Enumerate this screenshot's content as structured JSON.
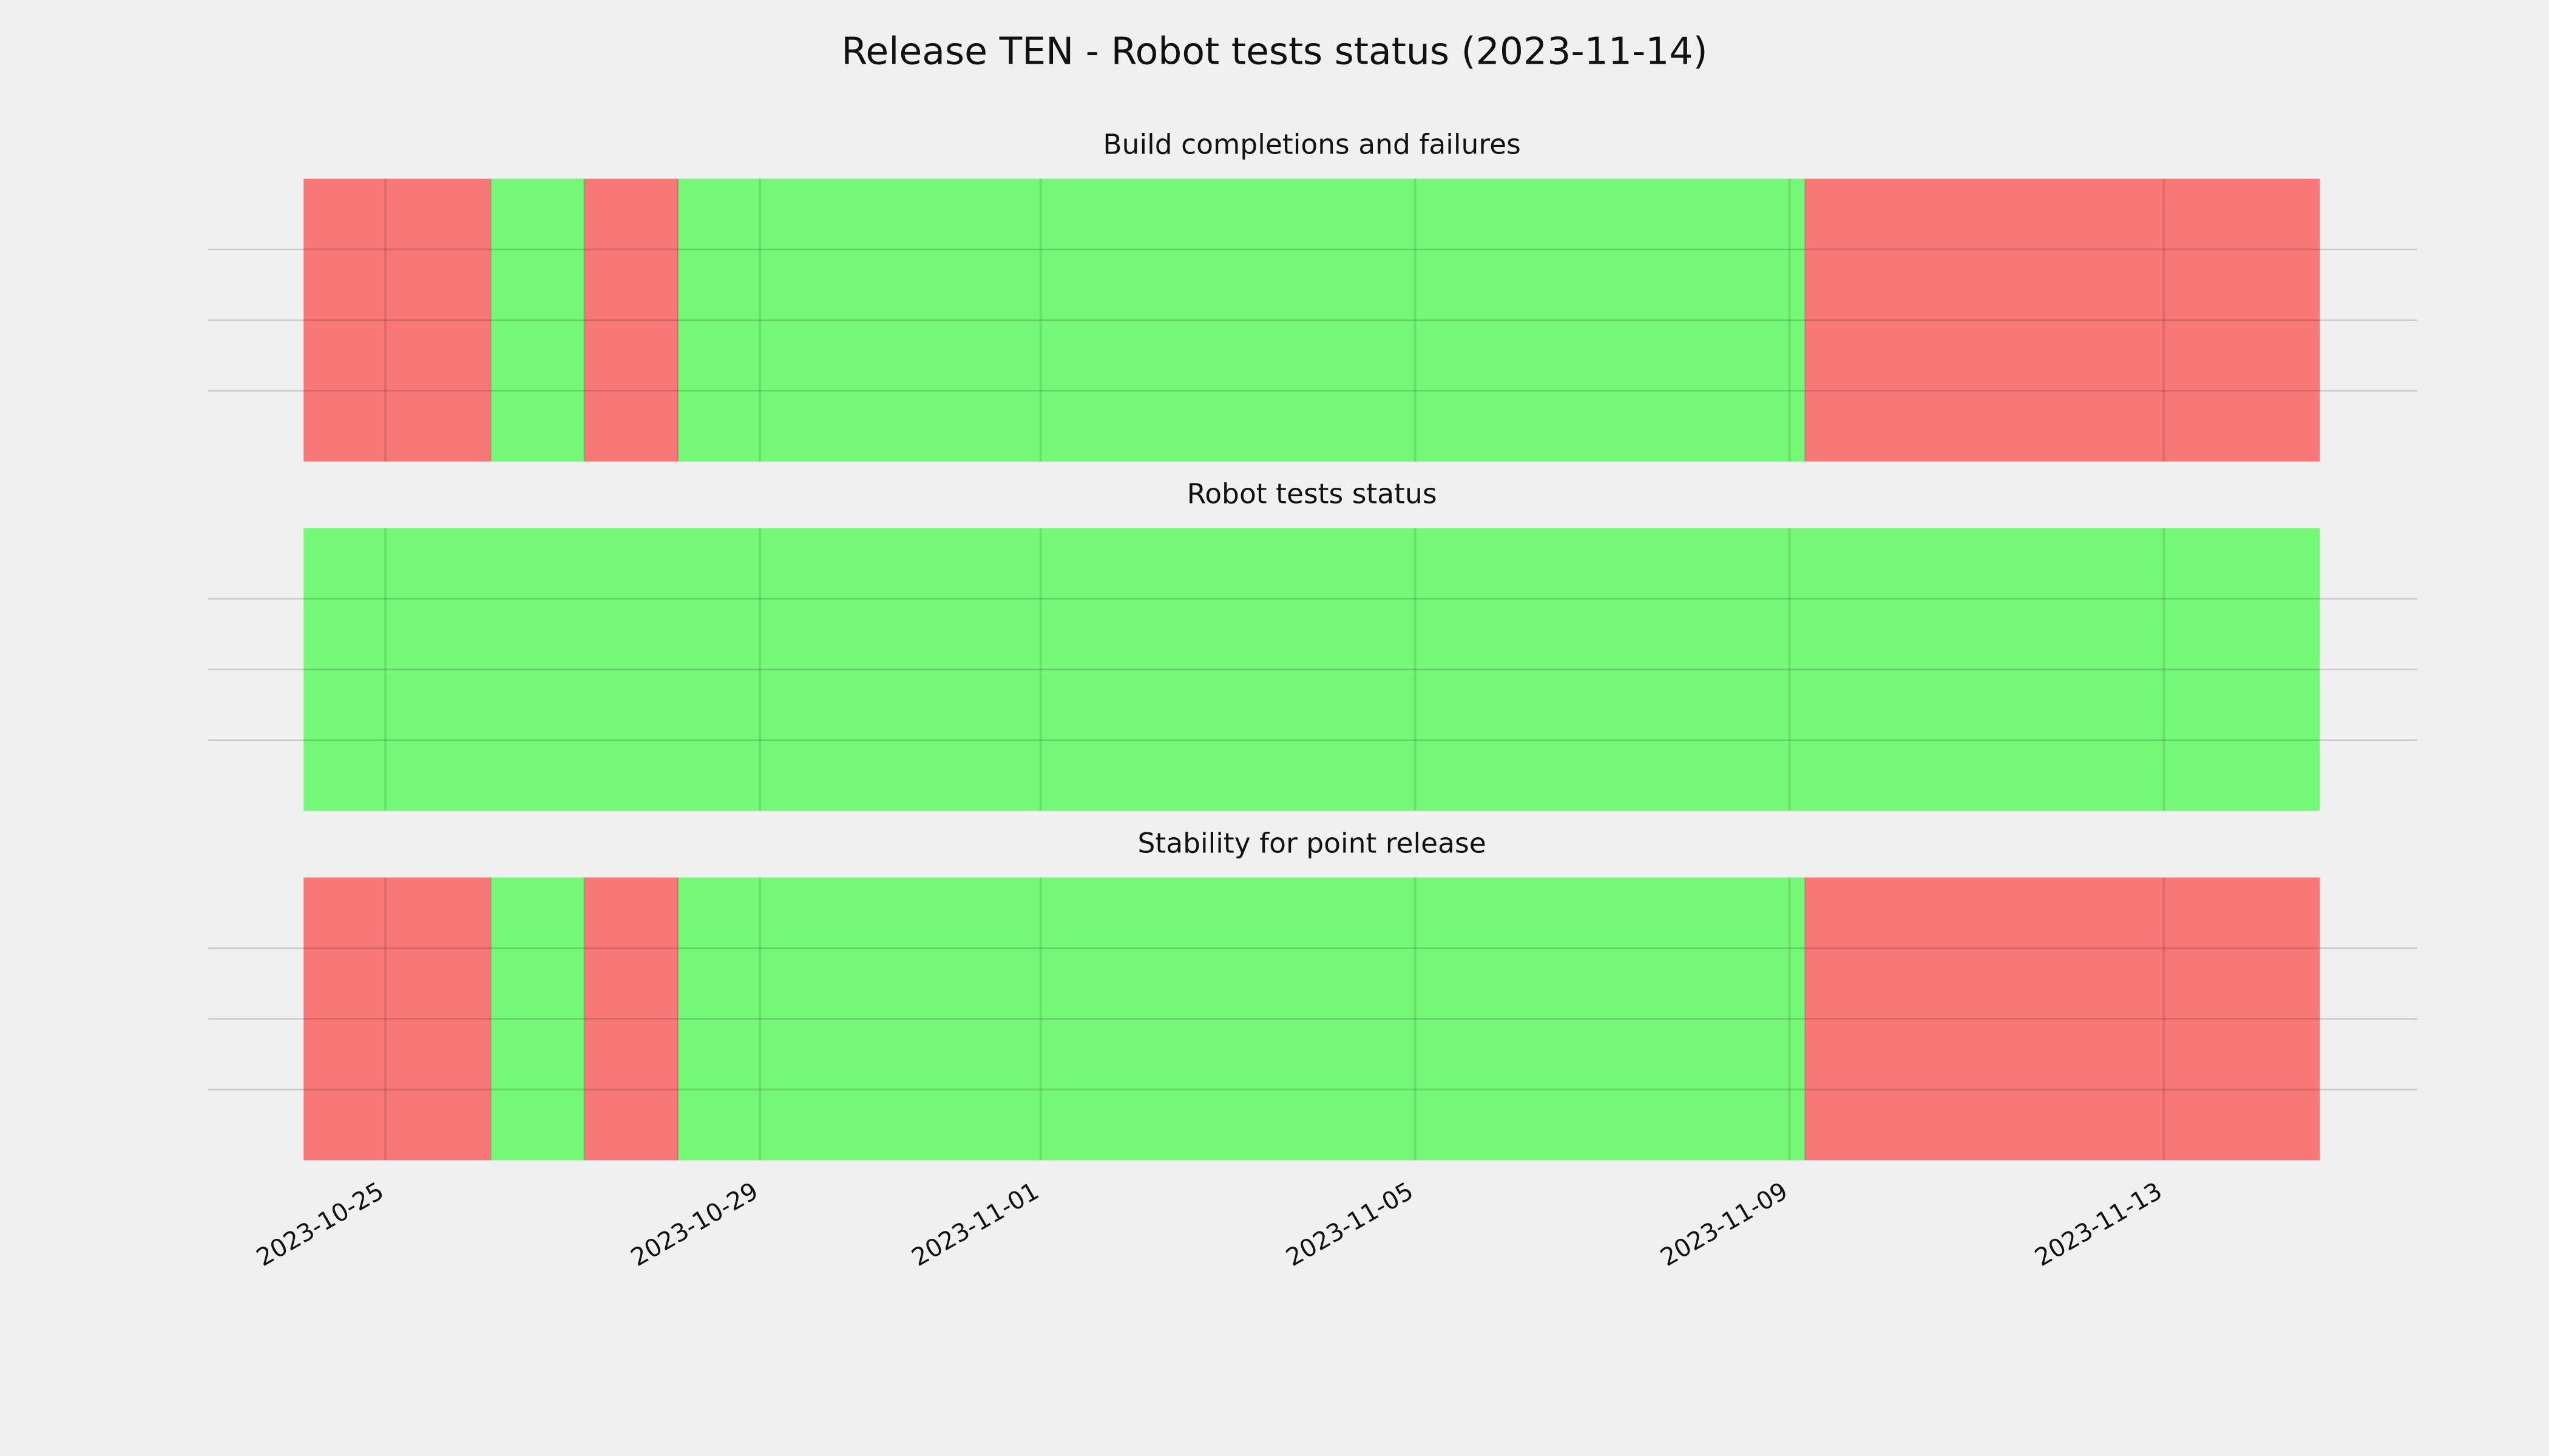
{
  "title": "Release TEN - Robot tests status (2023-11-14)",
  "chart_data": [
    {
      "type": "timeline",
      "title": "Build completions and failures",
      "segments": [
        {
          "start": "2023-10-24T03:00",
          "end": "2023-10-26T03:00",
          "color": "#f87878"
        },
        {
          "start": "2023-10-26T03:00",
          "end": "2023-10-27T03:00",
          "color": "#75f878"
        },
        {
          "start": "2023-10-27T03:00",
          "end": "2023-10-28T03:00",
          "color": "#f87878"
        },
        {
          "start": "2023-10-28T03:00",
          "end": "2023-11-09T04:00",
          "color": "#75f878"
        },
        {
          "start": "2023-11-09T04:00",
          "end": "2023-11-14T16:00",
          "color": "#f87878"
        }
      ],
      "xlim": [
        "2023-10-23T02:30",
        "2023-11-15T17:00"
      ],
      "xticks": [
        "2023-10-25",
        "2023-10-29",
        "2023-11-01",
        "2023-11-05",
        "2023-11-09",
        "2023-11-13"
      ],
      "ylim": [
        0,
        1
      ],
      "ygrid": [
        0.25,
        0.5,
        0.75
      ]
    },
    {
      "type": "timeline",
      "title": "Robot tests status",
      "segments": [
        {
          "start": "2023-10-24T03:00",
          "end": "2023-11-14T16:00",
          "color": "#75f878"
        }
      ],
      "xlim": [
        "2023-10-23T02:30",
        "2023-11-15T17:00"
      ],
      "xticks": [
        "2023-10-25",
        "2023-10-29",
        "2023-11-01",
        "2023-11-05",
        "2023-11-09",
        "2023-11-13"
      ],
      "ylim": [
        0,
        1
      ],
      "ygrid": [
        0.25,
        0.5,
        0.75
      ]
    },
    {
      "type": "timeline",
      "title": "Stability for point release",
      "segments": [
        {
          "start": "2023-10-24T03:00",
          "end": "2023-10-26T03:00",
          "color": "#f87878"
        },
        {
          "start": "2023-10-26T03:00",
          "end": "2023-10-27T03:00",
          "color": "#75f878"
        },
        {
          "start": "2023-10-27T03:00",
          "end": "2023-10-28T03:00",
          "color": "#f87878"
        },
        {
          "start": "2023-10-28T03:00",
          "end": "2023-11-09T04:00",
          "color": "#75f878"
        },
        {
          "start": "2023-11-09T04:00",
          "end": "2023-11-14T16:00",
          "color": "#f87878"
        }
      ],
      "xlim": [
        "2023-10-23T02:30",
        "2023-11-15T17:00"
      ],
      "xticks": [
        "2023-10-25",
        "2023-10-29",
        "2023-11-01",
        "2023-11-05",
        "2023-11-09",
        "2023-11-13"
      ],
      "ylim": [
        0,
        1
      ],
      "ygrid": [
        0.25,
        0.5,
        0.75
      ]
    }
  ]
}
